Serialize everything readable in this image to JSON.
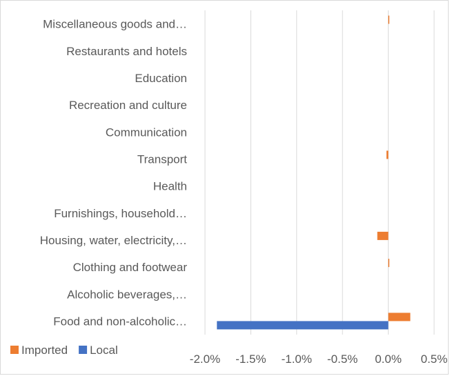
{
  "chart_data": {
    "type": "bar",
    "orientation": "horizontal",
    "title": "",
    "xlabel": "",
    "ylabel": "",
    "categories": [
      "Food and non-alcoholic…",
      "Alcoholic beverages,…",
      "Clothing and footwear",
      "Housing, water, electricity,…",
      "Furnishings, household…",
      "Health",
      "Transport",
      "Communication",
      "Recreation and culture",
      "Education",
      "Restaurants and hotels",
      "Miscellaneous goods and…"
    ],
    "series": [
      {
        "name": "Imported",
        "color": "#ed7d31",
        "values": [
          0.0024,
          0.0,
          0.0001,
          -0.0012,
          0.0,
          0.0,
          -0.0002,
          0.0,
          0.0,
          0.0,
          0.0,
          0.0001
        ]
      },
      {
        "name": "Local",
        "color": "#4472c4",
        "values": [
          -0.0187,
          0.0,
          0.0,
          0.0,
          0.0,
          0.0,
          0.0,
          0.0,
          0.0,
          0.0,
          0.0,
          0.0
        ]
      }
    ],
    "xlim": [
      -0.02,
      0.005
    ],
    "xticks": [
      -0.02,
      -0.015,
      -0.01,
      -0.005,
      0.0,
      0.005
    ],
    "xtick_labels": [
      "-2.0%",
      "-1.5%",
      "-1.0%",
      "-0.5%",
      "0.0%",
      "0.5%"
    ],
    "grid": true,
    "legend_position": "bottom-left"
  }
}
